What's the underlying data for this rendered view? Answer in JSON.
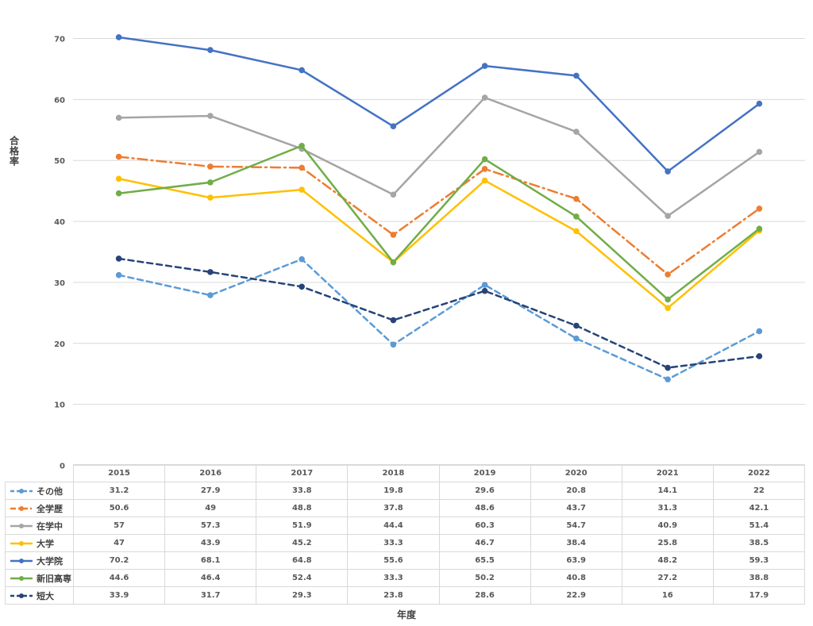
{
  "chart_data": {
    "type": "line",
    "ylabel": "合格率",
    "xlabel": "年度",
    "ylim": [
      0,
      70
    ],
    "yticks": [
      0,
      10,
      20,
      30,
      40,
      50,
      60,
      70
    ],
    "grid": true,
    "legend": "data-table",
    "categories": [
      "2015",
      "2016",
      "2017",
      "2018",
      "2019",
      "2020",
      "2021",
      "2022"
    ],
    "series": [
      {
        "name": "その他",
        "values": [
          31.2,
          27.9,
          33.8,
          19.8,
          29.6,
          20.8,
          14.1,
          22
        ],
        "color": "#5b9bd5",
        "dash": "dash"
      },
      {
        "name": "全学歴",
        "values": [
          50.6,
          49,
          48.8,
          37.8,
          48.6,
          43.7,
          31.3,
          42.1
        ],
        "color": "#ed7d31",
        "dash": "dashdot"
      },
      {
        "name": "在学中",
        "values": [
          57,
          57.3,
          51.9,
          44.4,
          60.3,
          54.7,
          40.9,
          51.4
        ],
        "color": "#a5a5a5",
        "dash": "solid"
      },
      {
        "name": "大学",
        "values": [
          47,
          43.9,
          45.2,
          33.3,
          46.7,
          38.4,
          25.8,
          38.5
        ],
        "color": "#ffc000",
        "dash": "solid"
      },
      {
        "name": "大学院",
        "values": [
          70.2,
          68.1,
          64.8,
          55.6,
          65.5,
          63.9,
          48.2,
          59.3
        ],
        "color": "#4472c4",
        "dash": "solid"
      },
      {
        "name": "新旧高専",
        "values": [
          44.6,
          46.4,
          52.4,
          33.3,
          50.2,
          40.8,
          27.2,
          38.8
        ],
        "color": "#70ad47",
        "dash": "solid"
      },
      {
        "name": "短大",
        "values": [
          33.9,
          31.7,
          29.3,
          23.8,
          28.6,
          22.9,
          16,
          17.9
        ],
        "color": "#264478",
        "dash": "dash"
      }
    ]
  }
}
